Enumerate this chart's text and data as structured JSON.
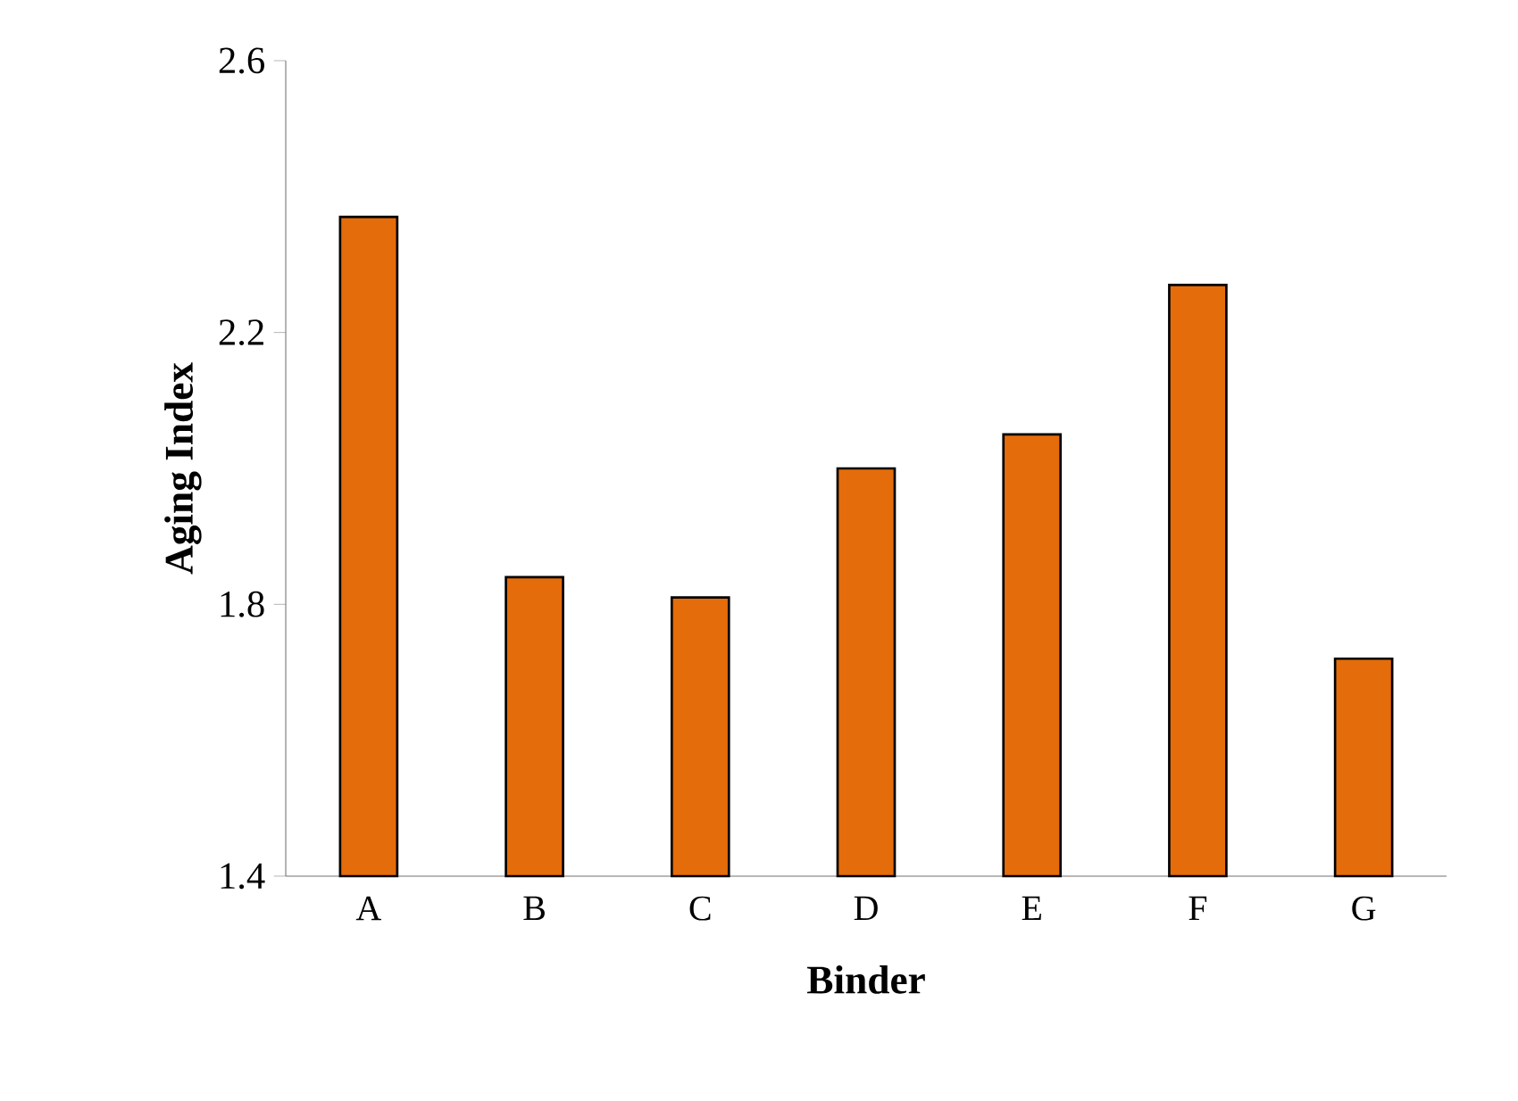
{
  "chart_data": {
    "type": "bar",
    "xlabel": "Binder",
    "ylabel": "Aging Index",
    "categories": [
      "A",
      "B",
      "C",
      "D",
      "E",
      "F",
      "G"
    ],
    "values": [
      2.37,
      1.84,
      1.81,
      2.0,
      2.05,
      2.27,
      1.72
    ],
    "color": "#e46c0a",
    "ylim": [
      1.4,
      2.6
    ],
    "yticks": [
      1.4,
      1.8,
      2.2,
      2.6
    ],
    "grid": false
  }
}
